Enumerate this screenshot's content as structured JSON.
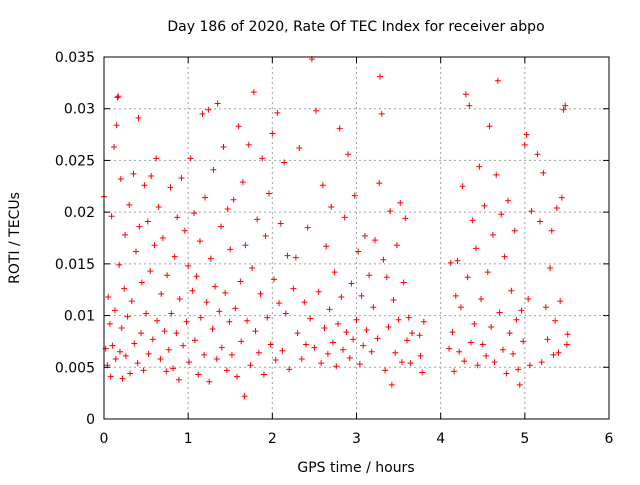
{
  "chart_data": {
    "type": "scatter",
    "title": "Day 186 of 2020, Rate Of TEC Index for receiver abpo",
    "xlabel": "GPS time / hours",
    "ylabel": "ROTI / TECUs",
    "xlim": [
      0,
      6
    ],
    "ylim": [
      0,
      0.035
    ],
    "x_ticks": [
      0,
      1,
      2,
      3,
      4,
      5,
      6
    ],
    "y_ticks": [
      0,
      0.005,
      0.01,
      0.015,
      0.02,
      0.025,
      0.03,
      0.035
    ],
    "x_tick_labels": [
      "0",
      "1",
      "2",
      "3",
      "4",
      "5",
      "6"
    ],
    "y_tick_labels": [
      "0",
      "0.005",
      "0.01",
      "0.015",
      "0.02",
      "0.025",
      "0.03",
      "0.035"
    ],
    "grid": true,
    "marker": "+",
    "marker_color": "#ff0000",
    "series": [
      {
        "name": "ROTI",
        "points": [
          [
            0.0,
            0.0215
          ],
          [
            0.02,
            0.0068
          ],
          [
            0.04,
            0.0052
          ],
          [
            0.05,
            0.0118
          ],
          [
            0.07,
            0.0092
          ],
          [
            0.08,
            0.0041
          ],
          [
            0.09,
            0.0196
          ],
          [
            0.1,
            0.0071
          ],
          [
            0.12,
            0.0263
          ],
          [
            0.13,
            0.0105
          ],
          [
            0.14,
            0.0058
          ],
          [
            0.15,
            0.0284
          ],
          [
            0.16,
            0.0311
          ],
          [
            0.17,
            0.0312
          ],
          [
            0.18,
            0.0149
          ],
          [
            0.19,
            0.0065
          ],
          [
            0.2,
            0.0232
          ],
          [
            0.21,
            0.0088
          ],
          [
            0.22,
            0.0039
          ],
          [
            0.24,
            0.0126
          ],
          [
            0.25,
            0.0178
          ],
          [
            0.26,
            0.0061
          ],
          [
            0.28,
            0.0099
          ],
          [
            0.3,
            0.0207
          ],
          [
            0.31,
            0.0044
          ],
          [
            0.33,
            0.0114
          ],
          [
            0.35,
            0.0237
          ],
          [
            0.36,
            0.0073
          ],
          [
            0.38,
            0.0162
          ],
          [
            0.4,
            0.0054
          ],
          [
            0.41,
            0.0291
          ],
          [
            0.42,
            0.0186
          ],
          [
            0.44,
            0.0083
          ],
          [
            0.45,
            0.0132
          ],
          [
            0.47,
            0.0047
          ],
          [
            0.48,
            0.0226
          ],
          [
            0.5,
            0.0102
          ],
          [
            0.52,
            0.0191
          ],
          [
            0.53,
            0.0063
          ],
          [
            0.55,
            0.0143
          ],
          [
            0.56,
            0.0235
          ],
          [
            0.58,
            0.0077
          ],
          [
            0.6,
            0.0168
          ],
          [
            0.62,
            0.0252
          ],
          [
            0.63,
            0.0095
          ],
          [
            0.65,
            0.0205
          ],
          [
            0.67,
            0.0058
          ],
          [
            0.68,
            0.0121
          ],
          [
            0.7,
            0.0175
          ],
          [
            0.72,
            0.0085
          ],
          [
            0.74,
            0.0046
          ],
          [
            0.75,
            0.0139
          ],
          [
            0.77,
            0.0067
          ],
          [
            0.79,
            0.0224
          ],
          [
            0.8,
            0.0102
          ],
          [
            0.82,
            0.0049
          ],
          [
            0.84,
            0.0157
          ],
          [
            0.86,
            0.0083
          ],
          [
            0.87,
            0.0195
          ],
          [
            0.89,
            0.0038
          ],
          [
            0.9,
            0.0116
          ],
          [
            0.92,
            0.0233
          ],
          [
            0.94,
            0.0071
          ],
          [
            0.96,
            0.0182
          ],
          [
            0.98,
            0.0094
          ],
          [
            1.0,
            0.0148
          ],
          [
            1.01,
            0.0055
          ],
          [
            1.03,
            0.0252
          ],
          [
            1.05,
            0.0124
          ],
          [
            1.07,
            0.0199
          ],
          [
            1.08,
            0.0076
          ],
          [
            1.1,
            0.0138
          ],
          [
            1.12,
            0.0043
          ],
          [
            1.14,
            0.0172
          ],
          [
            1.15,
            0.0098
          ],
          [
            1.17,
            0.0295
          ],
          [
            1.19,
            0.0062
          ],
          [
            1.2,
            0.0214
          ],
          [
            1.22,
            0.0113
          ],
          [
            1.24,
            0.0299
          ],
          [
            1.25,
            0.0036
          ],
          [
            1.27,
            0.0155
          ],
          [
            1.29,
            0.0087
          ],
          [
            1.3,
            0.0241
          ],
          [
            1.32,
            0.0128
          ],
          [
            1.34,
            0.0058
          ],
          [
            1.35,
            0.0305
          ],
          [
            1.37,
            0.0104
          ],
          [
            1.39,
            0.0186
          ],
          [
            1.4,
            0.0069
          ],
          [
            1.42,
            0.0263
          ],
          [
            1.44,
            0.0122
          ],
          [
            1.46,
            0.0047
          ],
          [
            1.47,
            0.0203
          ],
          [
            1.49,
            0.0094
          ],
          [
            1.5,
            0.0164
          ],
          [
            1.52,
            0.0062
          ],
          [
            1.54,
            0.0212
          ],
          [
            1.56,
            0.0107
          ],
          [
            1.58,
            0.0041
          ],
          [
            1.6,
            0.0283
          ],
          [
            1.62,
            0.0133
          ],
          [
            1.63,
            0.0075
          ],
          [
            1.65,
            0.0229
          ],
          [
            1.67,
            0.0022
          ],
          [
            1.68,
            0.0168
          ],
          [
            1.7,
            0.0095
          ],
          [
            1.72,
            0.0265
          ],
          [
            1.74,
            0.0052
          ],
          [
            1.76,
            0.0146
          ],
          [
            1.78,
            0.0316
          ],
          [
            1.8,
            0.0085
          ],
          [
            1.82,
            0.0193
          ],
          [
            1.84,
            0.0064
          ],
          [
            1.86,
            0.0121
          ],
          [
            1.88,
            0.0252
          ],
          [
            1.9,
            0.0043
          ],
          [
            1.92,
            0.0177
          ],
          [
            1.94,
            0.0098
          ],
          [
            1.96,
            0.0218
          ],
          [
            1.98,
            0.0072
          ],
          [
            2.0,
            0.0276
          ],
          [
            2.02,
            0.0135
          ],
          [
            2.04,
            0.0057
          ],
          [
            2.06,
            0.0296
          ],
          [
            2.08,
            0.0112
          ],
          [
            2.1,
            0.0189
          ],
          [
            2.12,
            0.0066
          ],
          [
            2.14,
            0.0248
          ],
          [
            2.16,
            0.0102
          ],
          [
            2.18,
            0.0158
          ],
          [
            2.2,
            0.0048
          ],
          [
            2.25,
            0.0126
          ],
          [
            2.28,
            0.0156
          ],
          [
            2.3,
            0.0083
          ],
          [
            2.32,
            0.0262
          ],
          [
            2.35,
            0.0058
          ],
          [
            2.38,
            0.0113
          ],
          [
            2.4,
            0.0072
          ],
          [
            2.42,
            0.0185
          ],
          [
            2.45,
            0.0097
          ],
          [
            2.47,
            0.0348
          ],
          [
            2.5,
            0.0069
          ],
          [
            2.52,
            0.0298
          ],
          [
            2.55,
            0.0123
          ],
          [
            2.58,
            0.0054
          ],
          [
            2.6,
            0.0226
          ],
          [
            2.62,
            0.0088
          ],
          [
            2.64,
            0.0167
          ],
          [
            2.66,
            0.0063
          ],
          [
            2.68,
            0.0106
          ],
          [
            2.7,
            0.0205
          ],
          [
            2.72,
            0.0074
          ],
          [
            2.74,
            0.0142
          ],
          [
            2.76,
            0.0051
          ],
          [
            2.78,
            0.0092
          ],
          [
            2.8,
            0.0281
          ],
          [
            2.82,
            0.0118
          ],
          [
            2.84,
            0.0067
          ],
          [
            2.86,
            0.0195
          ],
          [
            2.88,
            0.0084
          ],
          [
            2.9,
            0.0256
          ],
          [
            2.92,
            0.0059
          ],
          [
            2.94,
            0.0131
          ],
          [
            2.96,
            0.0077
          ],
          [
            2.98,
            0.0216
          ],
          [
            3.0,
            0.0096
          ],
          [
            3.02,
            0.0162
          ],
          [
            3.04,
            0.0053
          ],
          [
            3.06,
            0.0119
          ],
          [
            3.08,
            0.0071
          ],
          [
            3.1,
            0.0177
          ],
          [
            3.12,
            0.0086
          ],
          [
            3.15,
            0.0139
          ],
          [
            3.18,
            0.0065
          ],
          [
            3.2,
            0.0108
          ],
          [
            3.22,
            0.0173
          ],
          [
            3.25,
            0.0078
          ],
          [
            3.27,
            0.0228
          ],
          [
            3.28,
            0.0331
          ],
          [
            3.3,
            0.0295
          ],
          [
            3.32,
            0.0154
          ],
          [
            3.34,
            0.0047
          ],
          [
            3.36,
            0.0137
          ],
          [
            3.38,
            0.0089
          ],
          [
            3.4,
            0.0201
          ],
          [
            3.42,
            0.0033
          ],
          [
            3.44,
            0.0115
          ],
          [
            3.46,
            0.0064
          ],
          [
            3.48,
            0.0168
          ],
          [
            3.5,
            0.0096
          ],
          [
            3.52,
            0.0209
          ],
          [
            3.54,
            0.0055
          ],
          [
            3.56,
            0.0132
          ],
          [
            3.58,
            0.0194
          ],
          [
            3.6,
            0.0076
          ],
          [
            3.62,
            0.0098
          ],
          [
            3.64,
            0.0054
          ],
          [
            3.66,
            0.0083
          ],
          [
            3.75,
            0.0081
          ],
          [
            3.76,
            0.0061
          ],
          [
            3.78,
            0.0045
          ],
          [
            3.8,
            0.0094
          ],
          [
            4.1,
            0.0068
          ],
          [
            4.12,
            0.0151
          ],
          [
            4.14,
            0.0084
          ],
          [
            4.16,
            0.0046
          ],
          [
            4.18,
            0.0119
          ],
          [
            4.2,
            0.0153
          ],
          [
            4.22,
            0.0065
          ],
          [
            4.24,
            0.0108
          ],
          [
            4.26,
            0.0225
          ],
          [
            4.28,
            0.0056
          ],
          [
            4.3,
            0.0314
          ],
          [
            4.32,
            0.0137
          ],
          [
            4.34,
            0.0303
          ],
          [
            4.36,
            0.0074
          ],
          [
            4.38,
            0.0192
          ],
          [
            4.4,
            0.0092
          ],
          [
            4.42,
            0.0165
          ],
          [
            4.44,
            0.0052
          ],
          [
            4.46,
            0.0244
          ],
          [
            4.48,
            0.0116
          ],
          [
            4.5,
            0.0072
          ],
          [
            4.52,
            0.0206
          ],
          [
            4.54,
            0.0061
          ],
          [
            4.56,
            0.0142
          ],
          [
            4.58,
            0.0283
          ],
          [
            4.6,
            0.0089
          ],
          [
            4.62,
            0.0178
          ],
          [
            4.64,
            0.0055
          ],
          [
            4.66,
            0.0236
          ],
          [
            4.68,
            0.0327
          ],
          [
            4.7,
            0.0103
          ],
          [
            4.72,
            0.0198
          ],
          [
            4.74,
            0.0067
          ],
          [
            4.76,
            0.0157
          ],
          [
            4.78,
            0.0044
          ],
          [
            4.8,
            0.0211
          ],
          [
            4.82,
            0.0083
          ],
          [
            4.84,
            0.0124
          ],
          [
            4.86,
            0.0063
          ],
          [
            4.88,
            0.0182
          ],
          [
            4.9,
            0.0096
          ],
          [
            4.92,
            0.0048
          ],
          [
            4.94,
            0.0033
          ],
          [
            4.96,
            0.0105
          ],
          [
            4.98,
            0.0075
          ],
          [
            5.0,
            0.0265
          ],
          [
            5.02,
            0.0275
          ],
          [
            5.04,
            0.0116
          ],
          [
            5.06,
            0.0052
          ],
          [
            5.08,
            0.0201
          ],
          [
            5.15,
            0.0256
          ],
          [
            5.18,
            0.0191
          ],
          [
            5.2,
            0.0055
          ],
          [
            5.22,
            0.0238
          ],
          [
            5.25,
            0.0108
          ],
          [
            5.27,
            0.0077
          ],
          [
            5.3,
            0.0146
          ],
          [
            5.32,
            0.0182
          ],
          [
            5.34,
            0.0062
          ],
          [
            5.36,
            0.0095
          ],
          [
            5.38,
            0.0204
          ],
          [
            5.4,
            0.0064
          ],
          [
            5.42,
            0.0114
          ],
          [
            5.44,
            0.0214
          ],
          [
            5.46,
            0.0299
          ],
          [
            5.48,
            0.0303
          ],
          [
            5.5,
            0.0072
          ],
          [
            5.51,
            0.0082
          ]
        ]
      }
    ]
  }
}
